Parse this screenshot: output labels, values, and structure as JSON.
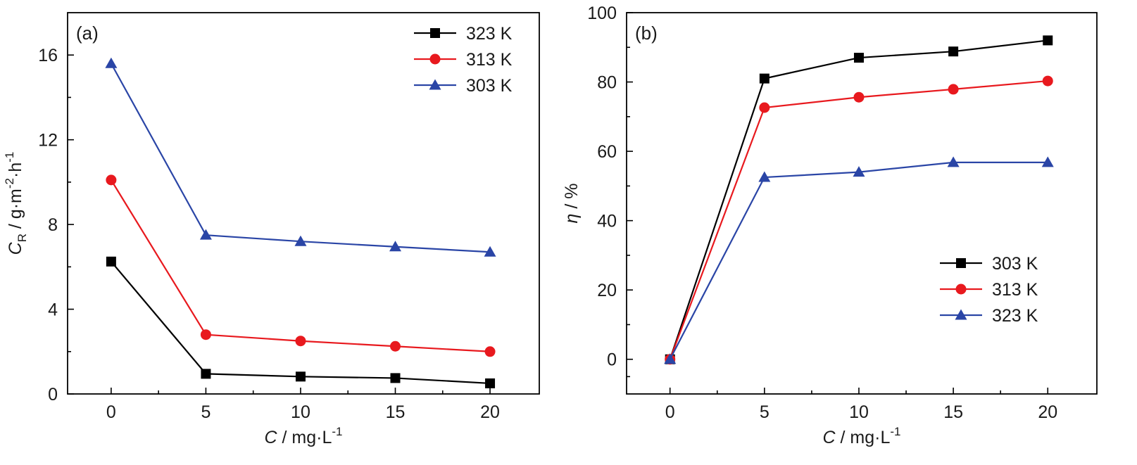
{
  "chart_data": [
    {
      "type": "line",
      "panel_label": "(a)",
      "xlabel": {
        "italic": "C",
        "text": " / mg·L",
        "sup": "-1"
      },
      "ylabel": {
        "italic": "C",
        "sub": "R",
        "text": " / g·m",
        "sup1": "-2",
        "mid": "·h",
        "sup2": "-1"
      },
      "xlim": [
        -2.3,
        22.6
      ],
      "ylim": [
        0,
        18
      ],
      "xticks": [
        0,
        5,
        10,
        15,
        20
      ],
      "yticks": [
        0,
        4,
        8,
        12,
        16
      ],
      "legend_position": "top-right",
      "series": [
        {
          "name": "323 K",
          "color": "#000000",
          "marker": "square",
          "x": [
            0,
            5,
            10,
            15,
            20
          ],
          "y": [
            6.25,
            0.95,
            0.82,
            0.75,
            0.5
          ]
        },
        {
          "name": "313 K",
          "color": "#e8191e",
          "marker": "circle",
          "x": [
            0,
            5,
            10,
            15,
            20
          ],
          "y": [
            10.1,
            2.8,
            2.5,
            2.25,
            2.0
          ]
        },
        {
          "name": "303 K",
          "color": "#2a45a6",
          "marker": "triangle",
          "x": [
            0,
            5,
            10,
            15,
            20
          ],
          "y": [
            15.6,
            7.5,
            7.2,
            6.95,
            6.7
          ]
        }
      ]
    },
    {
      "type": "line",
      "panel_label": "(b)",
      "xlabel": {
        "italic": "C",
        "text": " / mg·L",
        "sup": "-1"
      },
      "ylabel": {
        "italic": "η",
        "text": " / %"
      },
      "xlim": [
        -2.3,
        22.6
      ],
      "ylim": [
        -10,
        100
      ],
      "xticks": [
        0,
        5,
        10,
        15,
        20
      ],
      "yticks": [
        0,
        20,
        40,
        60,
        80,
        100
      ],
      "legend_position": "bottom-right",
      "series": [
        {
          "name": "303 K",
          "color": "#000000",
          "marker": "square",
          "x": [
            0,
            5,
            10,
            15,
            20
          ],
          "y": [
            0,
            81,
            87,
            88.8,
            92
          ]
        },
        {
          "name": "313 K",
          "color": "#e8191e",
          "marker": "circle",
          "x": [
            0,
            5,
            10,
            15,
            20
          ],
          "y": [
            0,
            72.6,
            75.6,
            77.9,
            80.3
          ]
        },
        {
          "name": "323 K",
          "color": "#2a45a6",
          "marker": "triangle",
          "x": [
            0,
            5,
            10,
            15,
            20
          ],
          "y": [
            0,
            52.5,
            54,
            56.8,
            56.8
          ]
        }
      ]
    }
  ]
}
